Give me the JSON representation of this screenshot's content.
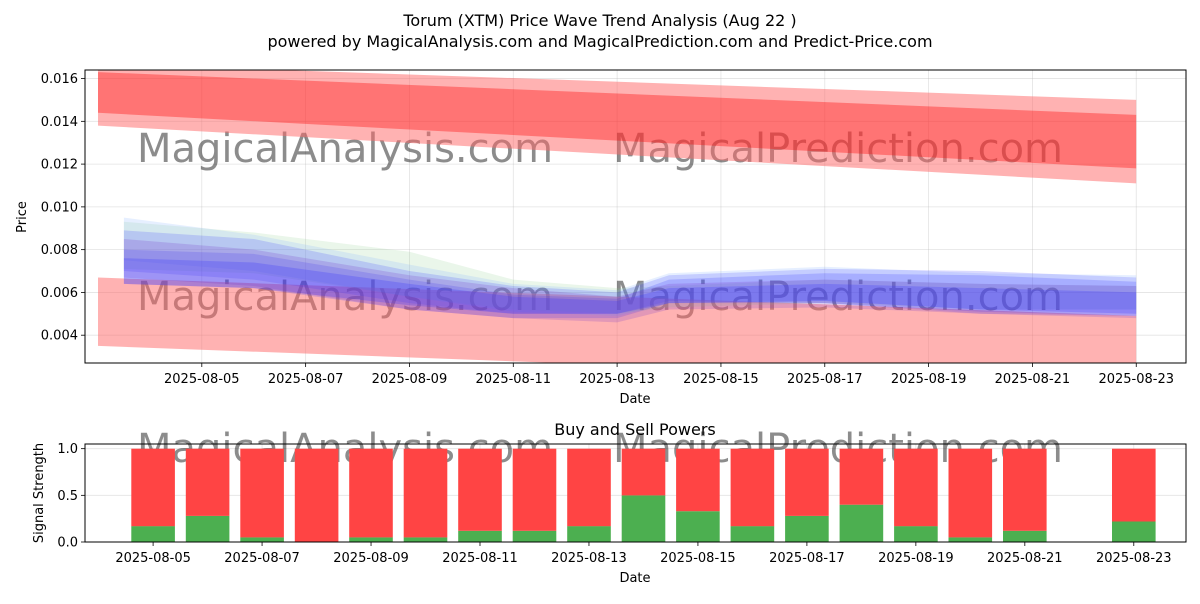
{
  "title": "Torum (XTM) Price Wave Trend Analysis (Aug 22 )",
  "subtitle": "powered by MagicalAnalysis.com and MagicalPrediction.com and Predict-Price.com",
  "watermarks": [
    "MagicalAnalysis.com",
    "MagicalPrediction.com"
  ],
  "colors": {
    "red": "#ff0000",
    "red_light": "#ff6666",
    "blue": "#3333ff",
    "purple": "#7a3cc8",
    "lightblue": "#8fb8ff",
    "green": "#88cc88",
    "buy": "#4caf50",
    "sell": "#ff4444"
  },
  "chart_data": [
    {
      "type": "area",
      "title": "",
      "xlabel": "Date",
      "ylabel": "Price",
      "x_ticks": [
        "2025-08-05",
        "2025-08-07",
        "2025-08-09",
        "2025-08-11",
        "2025-08-13",
        "2025-08-15",
        "2025-08-17",
        "2025-08-19",
        "2025-08-21",
        "2025-08-23"
      ],
      "y_ticks": [
        "0.004",
        "0.006",
        "0.008",
        "0.010",
        "0.012",
        "0.014",
        "0.016"
      ],
      "ylim": [
        0.0027,
        0.0164
      ],
      "xlim": [
        "2025-08-02 18:00",
        "2025-08-23 23:00"
      ],
      "grid": true,
      "bands": [
        {
          "color": "red_light",
          "opacity": 0.5,
          "x": [
            "2025-08-03",
            "2025-08-23"
          ],
          "upper": [
            0.0167,
            0.015
          ],
          "lower": [
            0.0138,
            0.0111
          ]
        },
        {
          "color": "red",
          "opacity": 0.35,
          "x": [
            "2025-08-03",
            "2025-08-23"
          ],
          "upper": [
            0.0163,
            0.0143
          ],
          "lower": [
            0.0144,
            0.0118
          ]
        },
        {
          "color": "red_light",
          "opacity": 0.5,
          "x": [
            "2025-08-03",
            "2025-08-23"
          ],
          "upper": [
            0.0067,
            0.0049
          ],
          "lower": [
            0.0035,
            0.0017
          ]
        },
        {
          "color": "green",
          "opacity": 0.18,
          "x": [
            "2025-08-03 12:00",
            "2025-08-06",
            "2025-08-09",
            "2025-08-11",
            "2025-08-13",
            "2025-08-14",
            "2025-08-17",
            "2025-08-20",
            "2025-08-23"
          ],
          "upper": [
            0.0093,
            0.0088,
            0.0079,
            0.0066,
            0.0062,
            0.0063,
            0.0066,
            0.0064,
            0.0063
          ],
          "lower": [
            0.0071,
            0.0069,
            0.0058,
            0.0052,
            0.005,
            0.0053,
            0.0055,
            0.0052,
            0.0052
          ]
        },
        {
          "color": "lightblue",
          "opacity": 0.22,
          "x": [
            "2025-08-03 12:00",
            "2025-08-06",
            "2025-08-09",
            "2025-08-11",
            "2025-08-13",
            "2025-08-14",
            "2025-08-17",
            "2025-08-20",
            "2025-08-23"
          ],
          "upper": [
            0.0095,
            0.0087,
            0.0073,
            0.0064,
            0.0061,
            0.0069,
            0.0072,
            0.0069,
            0.0068
          ],
          "lower": [
            0.0075,
            0.007,
            0.0058,
            0.0051,
            0.0049,
            0.0055,
            0.0056,
            0.0052,
            0.0052
          ]
        },
        {
          "color": "blue",
          "opacity": 0.18,
          "x": [
            "2025-08-03 12:00",
            "2025-08-06",
            "2025-08-09",
            "2025-08-11",
            "2025-08-13",
            "2025-08-14",
            "2025-08-17",
            "2025-08-20",
            "2025-08-23"
          ],
          "upper": [
            0.0089,
            0.0085,
            0.007,
            0.0063,
            0.006,
            0.0068,
            0.0071,
            0.007,
            0.0067
          ],
          "lower": [
            0.007,
            0.0066,
            0.0055,
            0.005,
            0.005,
            0.0056,
            0.0055,
            0.005,
            0.0049
          ]
        },
        {
          "color": "blue",
          "opacity": 0.2,
          "x": [
            "2025-08-03 12:00",
            "2025-08-06",
            "2025-08-09",
            "2025-08-11",
            "2025-08-13",
            "2025-08-14",
            "2025-08-17",
            "2025-08-20",
            "2025-08-23"
          ],
          "upper": [
            0.008,
            0.0078,
            0.0066,
            0.0059,
            0.0057,
            0.0066,
            0.0069,
            0.0068,
            0.0065
          ],
          "lower": [
            0.0064,
            0.0062,
            0.0052,
            0.0048,
            0.0048,
            0.0055,
            0.0055,
            0.0051,
            0.0049
          ]
        },
        {
          "color": "purple",
          "opacity": 0.22,
          "x": [
            "2025-08-03 12:00",
            "2025-08-06",
            "2025-08-09",
            "2025-08-11",
            "2025-08-13",
            "2025-08-14",
            "2025-08-17",
            "2025-08-20",
            "2025-08-23"
          ],
          "upper": [
            0.0085,
            0.008,
            0.0068,
            0.0062,
            0.0058,
            0.0064,
            0.0066,
            0.0064,
            0.0063
          ],
          "lower": [
            0.0067,
            0.0063,
            0.0052,
            0.0048,
            0.0046,
            0.0052,
            0.0053,
            0.005,
            0.0048
          ]
        },
        {
          "color": "blue",
          "opacity": 0.25,
          "x": [
            "2025-08-03 12:00",
            "2025-08-06",
            "2025-08-09",
            "2025-08-11",
            "2025-08-13",
            "2025-08-14",
            "2025-08-17",
            "2025-08-20",
            "2025-08-23"
          ],
          "upper": [
            0.0076,
            0.0074,
            0.0064,
            0.0058,
            0.0056,
            0.0062,
            0.0064,
            0.0062,
            0.006
          ],
          "lower": [
            0.0064,
            0.0062,
            0.0054,
            0.005,
            0.005,
            0.0055,
            0.0056,
            0.0052,
            0.005
          ]
        }
      ]
    },
    {
      "type": "bar",
      "title": "Buy and Sell Powers",
      "xlabel": "Date",
      "ylabel": "Signal Strength",
      "x_ticks": [
        "2025-08-05",
        "2025-08-07",
        "2025-08-09",
        "2025-08-11",
        "2025-08-13",
        "2025-08-15",
        "2025-08-17",
        "2025-08-19",
        "2025-08-21",
        "2025-08-23"
      ],
      "y_ticks": [
        "0.0",
        "0.5",
        "1.0"
      ],
      "ylim": [
        0,
        1.05
      ],
      "xlim": [
        "2025-08-03 18:00",
        "2025-08-23 23:00"
      ],
      "grid": true,
      "categories": [
        "2025-08-05",
        "2025-08-06",
        "2025-08-07",
        "2025-08-08",
        "2025-08-09",
        "2025-08-10",
        "2025-08-11",
        "2025-08-12",
        "2025-08-13",
        "2025-08-14",
        "2025-08-15",
        "2025-08-16",
        "2025-08-17",
        "2025-08-18",
        "2025-08-19",
        "2025-08-20",
        "2025-08-21",
        "2025-08-23"
      ],
      "series": [
        {
          "values": [
            0.17,
            0.28,
            0.05,
            0.0,
            0.05,
            0.05,
            0.12,
            0.12,
            0.17,
            0.5,
            0.33,
            0.17,
            0.28,
            0.4,
            0.17,
            0.05,
            0.12,
            0.22
          ]
        },
        {
          "values": [
            0.83,
            0.72,
            0.95,
            1.0,
            0.95,
            0.95,
            0.88,
            0.88,
            0.83,
            0.5,
            0.67,
            0.83,
            0.72,
            0.6,
            0.83,
            0.95,
            0.88,
            0.78
          ]
        }
      ]
    }
  ]
}
